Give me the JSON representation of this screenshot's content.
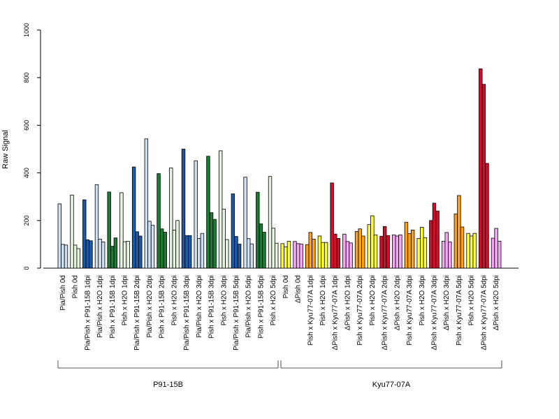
{
  "chart_data": {
    "type": "bar",
    "ylabel": "Raw Signal",
    "ylim": [
      0,
      1000
    ],
    "yticks": [
      0,
      200,
      400,
      600,
      800,
      1000
    ],
    "bars_per_group": 3,
    "categories": [
      "Pia/Pish 0d",
      "Pish 0d",
      "Pia/Pish x P91-15B 1dpi",
      "Pia/Pish x H2O 1dpi",
      "Pish x P91-15B 1dpi",
      "Pish x H2O 1dpi",
      "Pia/Pish x P91-15B 2dpi",
      "Pia/Pish x H2O 2dpi",
      "Pish x P91-15B 2dpi",
      "Pish x H2O 2dpi",
      "Pia/Pish x P91-15B 3dpi",
      "Pia/Pish x H2O 3dpi",
      "Pish x P91-15B 3dpi",
      "Pish x H2O 3dpi",
      "Pia/Pish x P91-15B 5dpi",
      "Pia/Pish x H2O 5dpi",
      "Pish x P91-15B 5dpi",
      "Pish x H2O 5dpi",
      "Pish 0d",
      "ΔPish 0d",
      "Pish x Kyu77-07A 1dpi",
      "Pish x H2O 1dpi",
      "ΔPish x Kyu77-07A 1dpi",
      "ΔPish x H2O 1dpi",
      "Pish x Kyu77-07A 2dpi",
      "Pish x H2O 2dpi",
      "ΔPish x Kyu77-07A 2dpi",
      "ΔPish x H2O 2dpi",
      "Pish x Kyu77-07A 3dpi",
      "Pish x H2O 3dpi",
      "ΔPish x Kyu77-07A 3dpi",
      "ΔPish x H2O 3dpi",
      "Pish x Kyu77-07A 5dpi",
      "Pish x H2O 5dpi",
      "ΔPish x Kyu77-07A 5dpi",
      "ΔPish x H2O 5dpi"
    ],
    "colors": [
      "#cfe0f3",
      "#e6f3e1",
      "#1c5aa6",
      "#cfe0f3",
      "#1e7a36",
      "#e6f3e1",
      "#1c5aa6",
      "#cfe0f3",
      "#1e7a36",
      "#e6f3e1",
      "#1c5aa6",
      "#cfe0f3",
      "#1e7a36",
      "#e6f3e1",
      "#1c5aa6",
      "#cfe0f3",
      "#1e7a36",
      "#e6f3e1",
      "#ffff33",
      "#f4a8f4",
      "#ffa21a",
      "#ffff33",
      "#d10f2a",
      "#f4a8f4",
      "#ffa21a",
      "#ffff33",
      "#d10f2a",
      "#f4a8f4",
      "#ffa21a",
      "#ffff33",
      "#d10f2a",
      "#f4a8f4",
      "#ffa21a",
      "#ffff33",
      "#d10f2a",
      "#f4a8f4"
    ],
    "values": [
      [
        270,
        100,
        97
      ],
      [
        307,
        97,
        82
      ],
      [
        287,
        119,
        115
      ],
      [
        351,
        122,
        110
      ],
      [
        320,
        92,
        127
      ],
      [
        317,
        111,
        113
      ],
      [
        425,
        153,
        135
      ],
      [
        543,
        197,
        180
      ],
      [
        397,
        165,
        151
      ],
      [
        421,
        160,
        200
      ],
      [
        500,
        137,
        137
      ],
      [
        451,
        125,
        146
      ],
      [
        470,
        233,
        205
      ],
      [
        493,
        248,
        120
      ],
      [
        312,
        133,
        101
      ],
      [
        382,
        124,
        102
      ],
      [
        319,
        186,
        151
      ],
      [
        385,
        168,
        105
      ],
      [
        103,
        90,
        113
      ],
      [
        112,
        103,
        101
      ],
      [
        99,
        150,
        122
      ],
      [
        135,
        108,
        108
      ],
      [
        358,
        143,
        125
      ],
      [
        143,
        112,
        106
      ],
      [
        154,
        165,
        135
      ],
      [
        183,
        220,
        140
      ],
      [
        134,
        175,
        137
      ],
      [
        140,
        135,
        140
      ],
      [
        193,
        145,
        160
      ],
      [
        125,
        172,
        128
      ],
      [
        200,
        273,
        240
      ],
      [
        113,
        150,
        110
      ],
      [
        228,
        305,
        173
      ],
      [
        146,
        135,
        146
      ],
      [
        837,
        772,
        440
      ],
      [
        126,
        167,
        113
      ]
    ],
    "groups": [
      {
        "name": "P91-15B",
        "start": 0,
        "end": 17
      },
      {
        "name": "Kyu77-07A",
        "start": 18,
        "end": 35
      }
    ]
  }
}
